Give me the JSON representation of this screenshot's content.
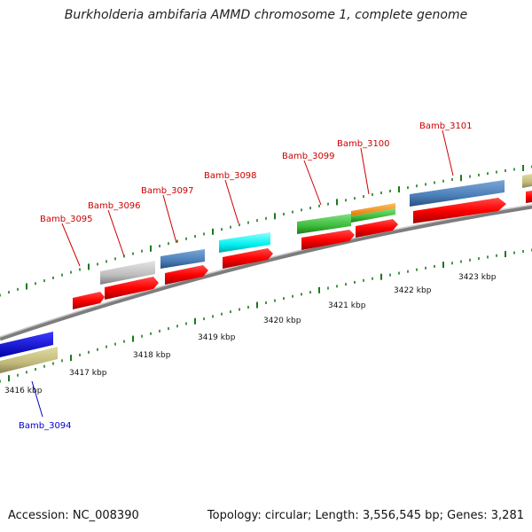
{
  "title": "Burkholderia ambifaria AMMD chromosome 1, complete genome",
  "footer": {
    "accession": "Accession: NC_008390",
    "summary": "Topology: circular; Length: 3,556,545 bp; Genes: 3,281"
  },
  "scale_labels": [
    "3416 kbp",
    "3417 kbp",
    "3418 kbp",
    "3419 kbp",
    "3420 kbp",
    "3421 kbp",
    "3422 kbp",
    "3423 kbp"
  ],
  "gene_labels": [
    "Bamb_3094",
    "Bamb_3095",
    "Bamb_3096",
    "Bamb_3097",
    "Bamb_3098",
    "Bamb_3099",
    "Bamb_3100",
    "Bamb_3101"
  ],
  "colors": {
    "label_red": "#cc0000",
    "label_blue": "#0000cc",
    "gene_red": "#ff0000",
    "tick": "#1a7a1a"
  }
}
